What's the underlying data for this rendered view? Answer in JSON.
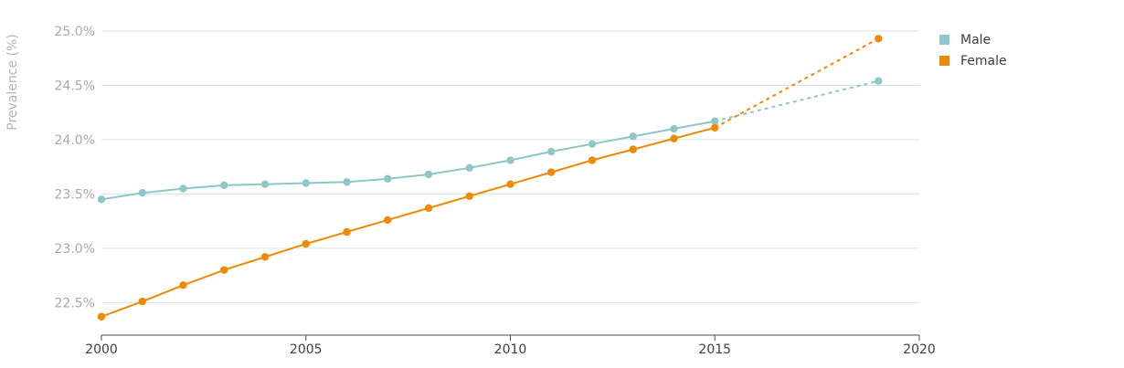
{
  "chart_data": {
    "type": "line",
    "ylabel": "Prevalence (%)",
    "xlim": [
      2000,
      2020
    ],
    "ylim": [
      22.2,
      25.0
    ],
    "x_ticks": [
      2000,
      2005,
      2010,
      2015,
      2020
    ],
    "y_ticks": [
      {
        "value": 22.5,
        "label": "22.5%"
      },
      {
        "value": 23.0,
        "label": "23.0%"
      },
      {
        "value": 23.5,
        "label": "23.5%"
      },
      {
        "value": 24.0,
        "label": "24.0%"
      },
      {
        "value": 24.5,
        "label": "24.5%"
      },
      {
        "value": 25.0,
        "label": "25.0%"
      }
    ],
    "grid": "horizontal",
    "legend_position": "right",
    "series": [
      {
        "name": "Male",
        "color": "#8fc7c8",
        "x": [
          2000,
          2001,
          2002,
          2003,
          2004,
          2005,
          2006,
          2007,
          2008,
          2009,
          2010,
          2011,
          2012,
          2013,
          2014,
          2015
        ],
        "values": [
          23.45,
          23.51,
          23.55,
          23.58,
          23.59,
          23.6,
          23.61,
          23.64,
          23.68,
          23.74,
          23.81,
          23.89,
          23.96,
          24.03,
          24.1,
          24.17
        ],
        "projection": {
          "x": [
            2015,
            2019
          ],
          "values": [
            24.17,
            24.54
          ]
        }
      },
      {
        "name": "Female",
        "color": "#ef8a07",
        "x": [
          2000,
          2001,
          2002,
          2003,
          2004,
          2005,
          2006,
          2007,
          2008,
          2009,
          2010,
          2011,
          2012,
          2013,
          2014,
          2015
        ],
        "values": [
          22.37,
          22.51,
          22.66,
          22.8,
          22.92,
          23.04,
          23.15,
          23.26,
          23.37,
          23.48,
          23.59,
          23.7,
          23.81,
          23.91,
          24.01,
          24.11
        ],
        "projection": {
          "x": [
            2015,
            2019
          ],
          "values": [
            24.11,
            24.93
          ]
        }
      }
    ]
  }
}
